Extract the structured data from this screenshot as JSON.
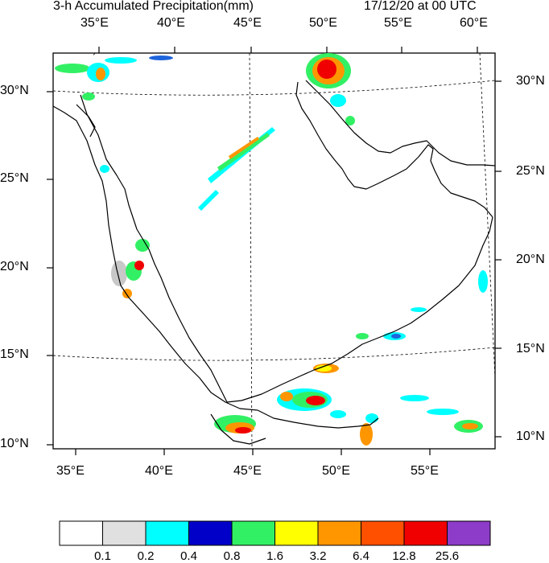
{
  "title_left": "3-h Accumulated Precipitation(mm)",
  "title_right": "17/12/20 at 00 UTC",
  "top_lon_labels": [
    "35°E",
    "40°E",
    "45°E",
    "50°E",
    "55°E",
    "60°E"
  ],
  "bottom_lon_labels": [
    "35°E",
    "40°E",
    "45°E",
    "50°E",
    "55°E"
  ],
  "left_lat_labels": [
    "30°N",
    "25°N",
    "20°N",
    "15°N",
    "10°N"
  ],
  "right_lat_labels": [
    "30°N",
    "25°N",
    "20°N",
    "15°N",
    "10°N"
  ],
  "colorbar": {
    "colors": [
      "#ffffff",
      "#e0e0e0",
      "#00ffff",
      "#0000c8",
      "#32f064",
      "#ffff00",
      "#ff9600",
      "#ff5000",
      "#f00000",
      "#8c3cc8"
    ],
    "labels": [
      "0.1",
      "0.2",
      "0.4",
      "0.8",
      "1.6",
      "3.2",
      "6.4",
      "12.8",
      "25.6"
    ]
  },
  "precip_colors": {
    "light": "#00ffff",
    "blue": "#1e64dc",
    "green": "#32f064",
    "yellow": "#ffff00",
    "orange": "#ff9600",
    "red": "#f00000",
    "grey": "#c8c8c8"
  }
}
